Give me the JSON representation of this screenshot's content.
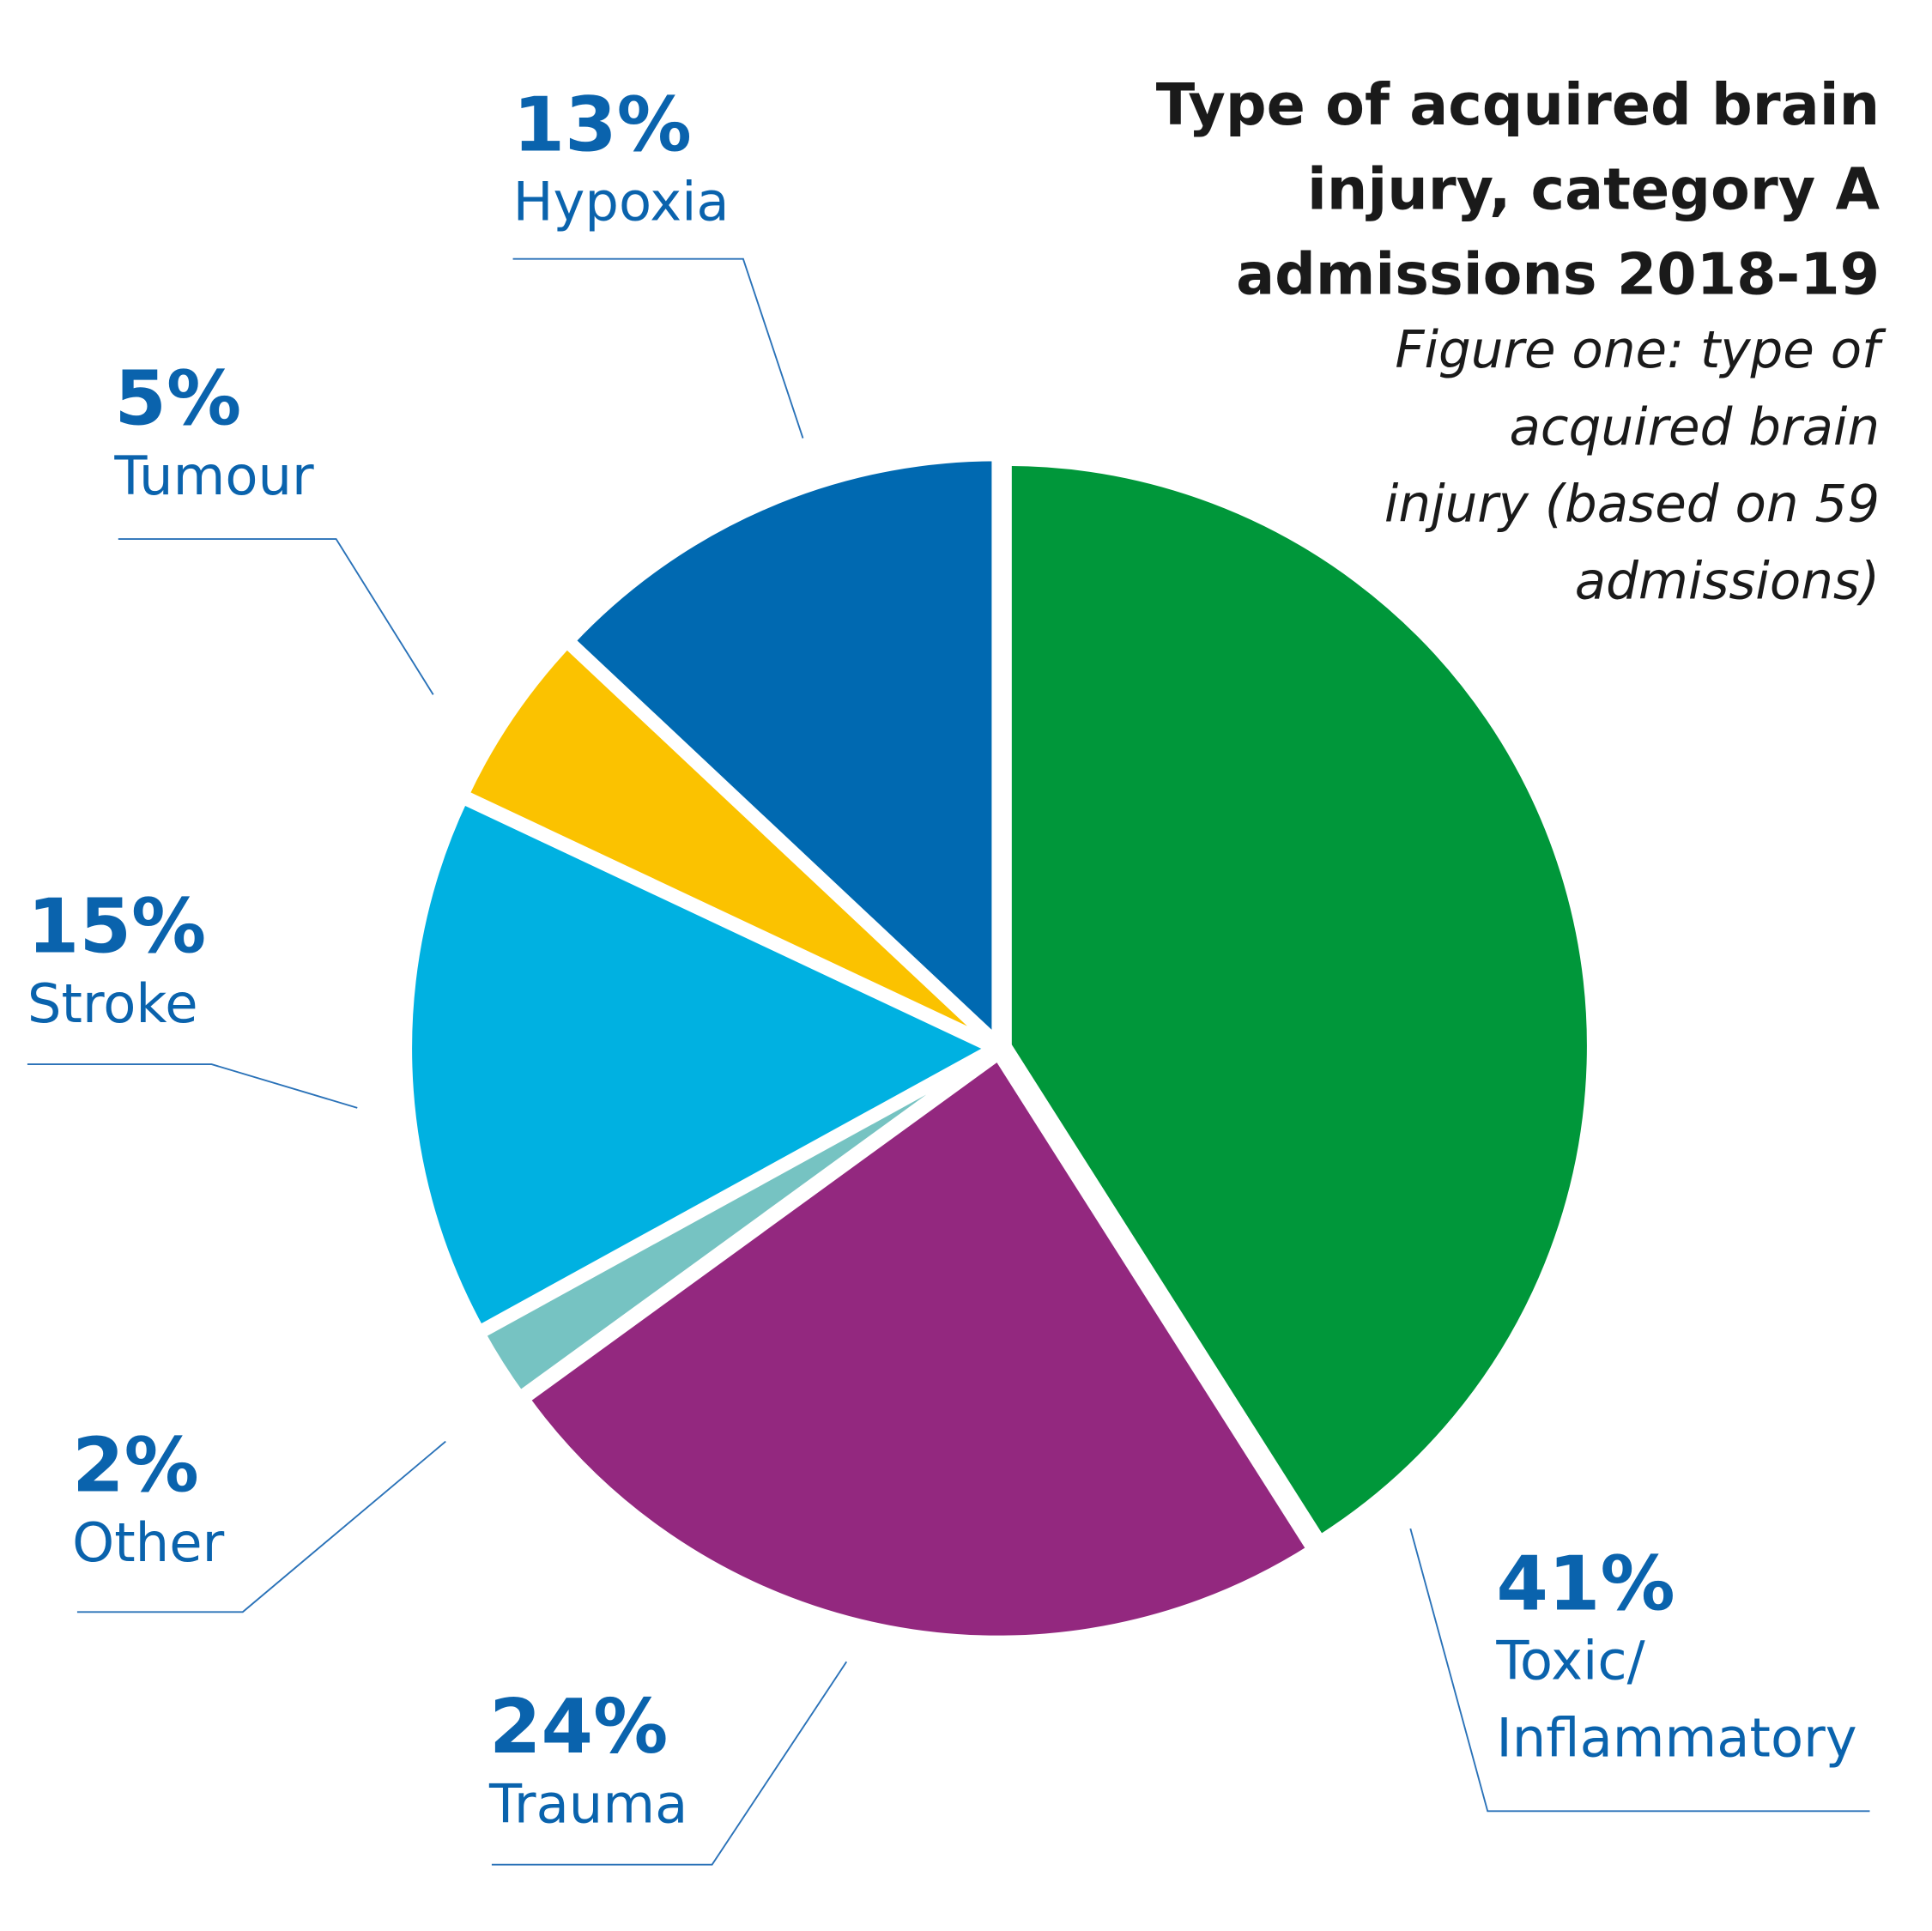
{
  "chart_data": {
    "type": "pie",
    "title": "Type of acquired brain injury, category A admissions 2018-19",
    "subtitle": "Figure one: type of acquired brain injury (based on 59 admissions)",
    "categories": [
      "Toxic/ Inflammatory",
      "Trauma",
      "Other",
      "Stroke",
      "Tumour",
      "Hypoxia"
    ],
    "values": [
      41,
      24,
      2,
      15,
      5,
      13
    ],
    "value_labels": [
      "41%",
      "24%",
      "2%",
      "15%",
      "5%",
      "13%"
    ],
    "colors": [
      "#00973a",
      "#93287f",
      "#76c3c2",
      "#00b1e1",
      "#fbc200",
      "#0069b1"
    ]
  }
}
